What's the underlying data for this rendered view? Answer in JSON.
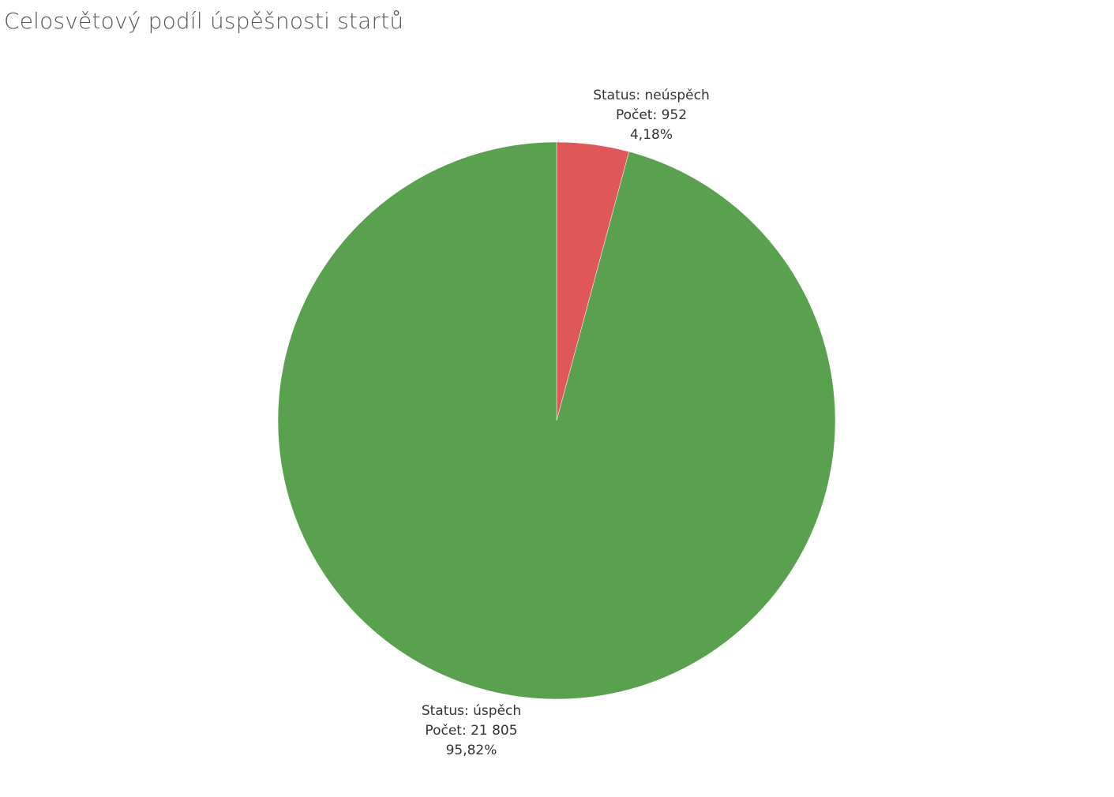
{
  "title": "Celosvětový podíl úspěšnosti startů",
  "chart_data": {
    "type": "pie",
    "title": "Celosvětový podíl úspěšnosti startů",
    "slices": [
      {
        "status": "neúspěch",
        "count": 952,
        "percent": 4.18,
        "color": "#E05759",
        "label_lines": [
          "Status: neúspěch",
          "Počet: 952",
          "4,18%"
        ]
      },
      {
        "status": "úspěch",
        "count": 21805,
        "percent": 95.82,
        "color": "#59A14F",
        "label_lines": [
          "Status: úspěch",
          "Počet: 21 805",
          "95,82%"
        ]
      }
    ]
  }
}
